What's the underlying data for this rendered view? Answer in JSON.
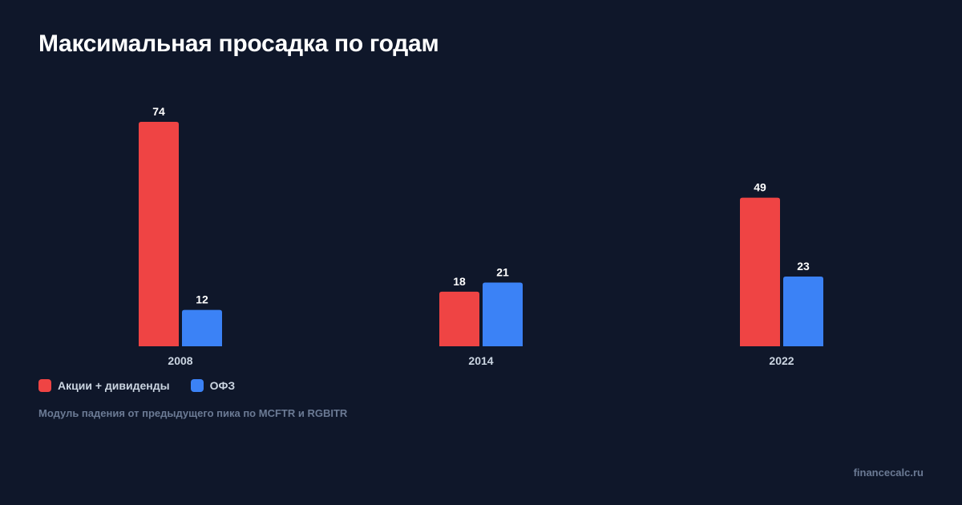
{
  "title": "Максимальная просадка по годам",
  "subtitle": "Модуль падения от предыдущего пика по MCFTR и RGBITR",
  "watermark": "financecalc.ru",
  "chart_data": {
    "type": "bar",
    "categories": [
      "2008",
      "2014",
      "2022"
    ],
    "series": [
      {
        "name": "Акции + дивиденды",
        "values": [
          74,
          18,
          49
        ],
        "color": "#ef4444"
      },
      {
        "name": "ОФЗ",
        "values": [
          12,
          21,
          23
        ],
        "color": "#3b82f6"
      }
    ],
    "data_labels": true,
    "grid": false,
    "legend_position": "bottom-left"
  }
}
